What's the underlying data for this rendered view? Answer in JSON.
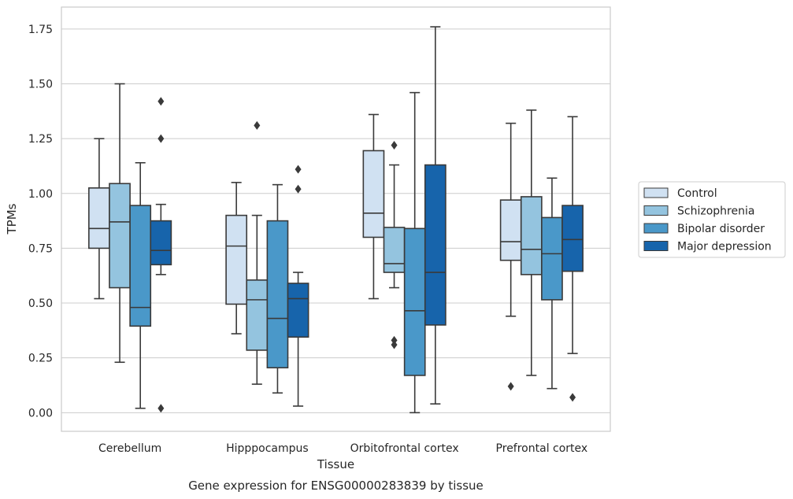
{
  "chart_data": {
    "type": "box",
    "title": "",
    "caption": "Gene expression for ENSG00000283839 by tissue",
    "xlabel": "Tissue",
    "ylabel": "TPMs",
    "ylim": [
      -0.085,
      1.85
    ],
    "yticks": [
      0.0,
      0.25,
      0.5,
      0.75,
      1.0,
      1.25,
      1.5,
      1.75
    ],
    "ytick_labels": [
      "0.00",
      "0.25",
      "0.50",
      "0.75",
      "1.00",
      "1.25",
      "1.50",
      "1.75"
    ],
    "grid": "horizontal",
    "legend_position": "right",
    "categories": [
      "Cerebellum",
      "Hipppocampus",
      "Orbitofrontal cortex",
      "Prefrontal cortex"
    ],
    "series": [
      {
        "name": "Control",
        "color": "#d0e1f2",
        "boxes": [
          {
            "whislo": 0.52,
            "q1": 0.75,
            "med": 0.84,
            "q3": 1.025,
            "whishi": 1.25,
            "fliers": []
          },
          {
            "whislo": 0.36,
            "q1": 0.495,
            "med": 0.76,
            "q3": 0.9,
            "whishi": 1.05,
            "fliers": []
          },
          {
            "whislo": 0.52,
            "q1": 0.8,
            "med": 0.91,
            "q3": 1.195,
            "whishi": 1.36,
            "fliers": []
          },
          {
            "whislo": 0.44,
            "q1": 0.695,
            "med": 0.78,
            "q3": 0.97,
            "whishi": 1.32,
            "fliers": [
              0.12
            ]
          }
        ]
      },
      {
        "name": "Schizophrenia",
        "color": "#94c4df",
        "boxes": [
          {
            "whislo": 0.23,
            "q1": 0.57,
            "med": 0.87,
            "q3": 1.045,
            "whishi": 1.5,
            "fliers": []
          },
          {
            "whislo": 0.13,
            "q1": 0.285,
            "med": 0.515,
            "q3": 0.605,
            "whishi": 0.9,
            "fliers": [
              1.31
            ]
          },
          {
            "whislo": 0.57,
            "q1": 0.64,
            "med": 0.68,
            "q3": 0.845,
            "whishi": 1.13,
            "fliers": [
              1.22,
              0.33,
              0.31
            ]
          },
          {
            "whislo": 0.17,
            "q1": 0.63,
            "med": 0.745,
            "q3": 0.985,
            "whishi": 1.38,
            "fliers": []
          }
        ]
      },
      {
        "name": "Bipolar disorder",
        "color": "#4a98c9",
        "boxes": [
          {
            "whislo": 0.02,
            "q1": 0.395,
            "med": 0.48,
            "q3": 0.945,
            "whishi": 1.14,
            "fliers": []
          },
          {
            "whislo": 0.09,
            "q1": 0.205,
            "med": 0.43,
            "q3": 0.875,
            "whishi": 1.04,
            "fliers": []
          },
          {
            "whislo": 0.0,
            "q1": 0.17,
            "med": 0.465,
            "q3": 0.84,
            "whishi": 1.46,
            "fliers": []
          },
          {
            "whislo": 0.11,
            "q1": 0.515,
            "med": 0.725,
            "q3": 0.89,
            "whishi": 1.07,
            "fliers": []
          }
        ]
      },
      {
        "name": "Major depression",
        "color": "#1764ab",
        "boxes": [
          {
            "whislo": 0.63,
            "q1": 0.675,
            "med": 0.74,
            "q3": 0.875,
            "whishi": 0.95,
            "fliers": [
              1.42,
              1.25,
              0.02
            ]
          },
          {
            "whislo": 0.03,
            "q1": 0.345,
            "med": 0.52,
            "q3": 0.59,
            "whishi": 0.64,
            "fliers": [
              1.11,
              1.02
            ]
          },
          {
            "whislo": 0.04,
            "q1": 0.4,
            "med": 0.64,
            "q3": 1.13,
            "whishi": 1.76,
            "fliers": []
          },
          {
            "whislo": 0.27,
            "q1": 0.645,
            "med": 0.79,
            "q3": 0.945,
            "whishi": 1.35,
            "fliers": [
              0.07
            ]
          }
        ]
      }
    ]
  }
}
